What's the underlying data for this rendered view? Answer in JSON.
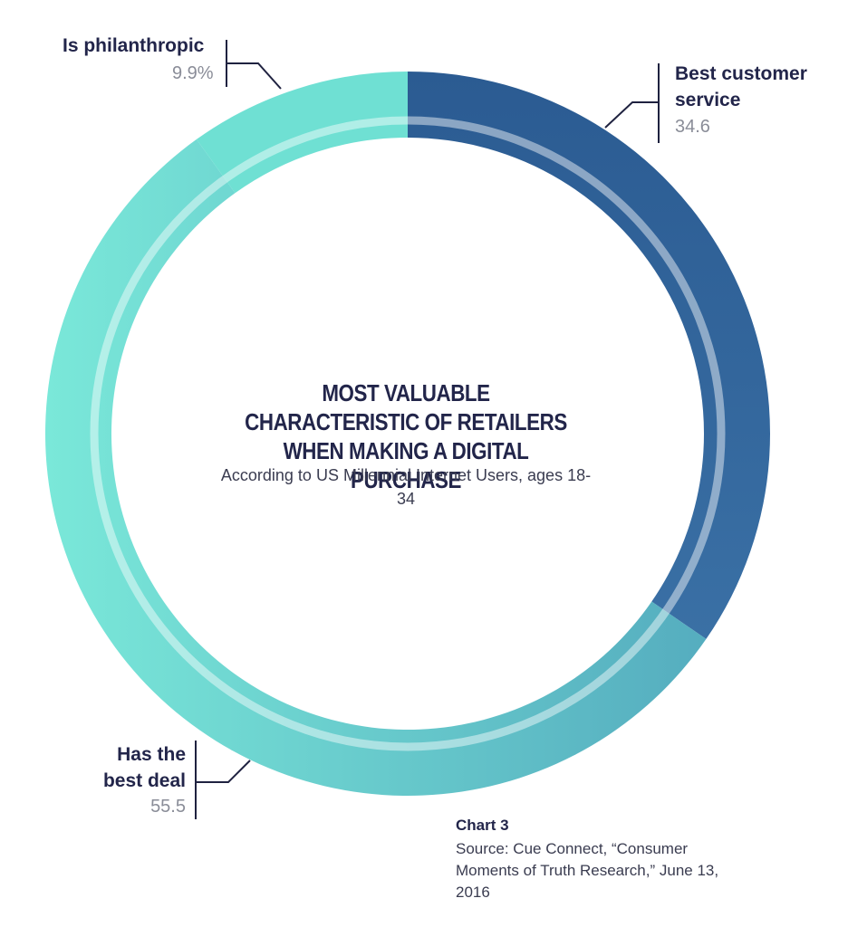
{
  "chart_data": {
    "type": "pie",
    "title": "MOST VALUABLE CHARACTERISTIC OF RETAILERS WHEN MAKING A DIGITAL PURCHASE",
    "subtitle": "According to US Millennial Internet Users, ages 18-34",
    "slices": [
      {
        "label": "Best customer service",
        "value": 34.6,
        "display": "34.6",
        "color_start": "#2b5b92",
        "color_end": "#3a6ea3"
      },
      {
        "label": "Has the best deal",
        "value": 55.5,
        "display": "55.5",
        "color_start": "#5ab3c0",
        "color_end": "#78e6d8"
      },
      {
        "label": "Is philanthropic",
        "value": 9.9,
        "display": "9.9%",
        "color_start": "#6fe0d3",
        "color_end": "#6fe0d3"
      }
    ]
  },
  "labels": {
    "philanthropic": {
      "name": "Is philanthropic",
      "value": "9.9%"
    },
    "customer_service": {
      "line1": "Best customer",
      "line2": "service",
      "value": "34.6"
    },
    "best_deal": {
      "line1": "Has the",
      "line2": "best deal",
      "value": "55.5"
    }
  },
  "caption": {
    "title": "Chart 3",
    "source": "Source: Cue Connect, “Consumer Moments of Truth Research,” June 13, 2016"
  },
  "colors": {
    "leader": "#1f2240",
    "inner_ring": "#ffffff"
  }
}
